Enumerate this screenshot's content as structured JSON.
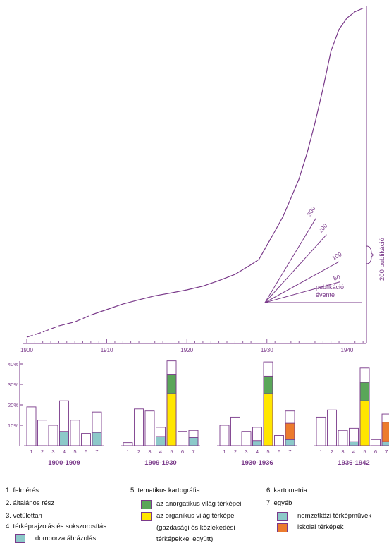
{
  "colors": {
    "purple": "#7a3a8a",
    "panel_title": "#7a3a8a",
    "inorganic_green": "#5aa659",
    "organic_yellow": "#ffe600",
    "international_teal": "#8cc9c9",
    "school_orange": "#ec7b2d",
    "relief_teal": "#8cc9c9",
    "bar_outline": "#7a3a8a"
  },
  "chart_data": [
    {
      "type": "line",
      "title": "",
      "x_axis": {
        "ticks": [
          "1900",
          "1910",
          "1920",
          "1930",
          "1940"
        ],
        "range": [
          1900,
          1943
        ]
      },
      "y_axis": {
        "label": "200 publikáció",
        "scale_bracket_value": 200
      },
      "series": [
        {
          "name": "",
          "x": [
            1900,
            1902,
            1904,
            1906,
            1908,
            1910,
            1912,
            1914,
            1916,
            1918,
            1920,
            1922,
            1924,
            1926,
            1928,
            1929,
            1930,
            1931,
            1932,
            1933,
            1934,
            1935,
            1936,
            1937,
            1938,
            1939,
            1940,
            1941,
            1942
          ],
          "y": [
            0,
            115,
            255,
            345,
            500,
            625,
            750,
            845,
            935,
            1000,
            1070,
            1155,
            1280,
            1420,
            1640,
            1760,
            2080,
            2400,
            2730,
            3150,
            3580,
            4160,
            4850,
            5630,
            6480,
            6970,
            7230,
            7370,
            7450
          ]
        }
      ],
      "fan_scale": {
        "caption": "publikáció évente",
        "labels": [
          "300",
          "200",
          "100",
          "50"
        ],
        "values": [
          300,
          200,
          100,
          50
        ]
      }
    },
    {
      "type": "bar",
      "stacked": true,
      "y_axis": {
        "ticks": [
          "10%",
          "20%",
          "30%",
          "40%"
        ],
        "range": [
          0,
          40
        ]
      },
      "categories": [
        "1",
        "2",
        "3",
        "4",
        "5",
        "6",
        "7"
      ],
      "panels": [
        {
          "title": "1900-1909",
          "totals": [
            19,
            12.5,
            10,
            22,
            12.5,
            6,
            16.5
          ],
          "segments": {
            "relief": [
              0,
              0,
              0,
              7,
              0,
              0,
              0
            ],
            "inorganic": [
              0,
              0,
              0,
              0,
              0,
              0,
              0
            ],
            "organic": [
              0,
              0,
              0,
              0,
              0,
              0,
              0
            ],
            "international": [
              0,
              0,
              0,
              0,
              0,
              0,
              6.5
            ],
            "school": [
              0,
              0,
              0,
              0,
              0,
              0,
              0
            ]
          }
        },
        {
          "title": "1909-1930",
          "totals": [
            1.5,
            18,
            17,
            9,
            41.5,
            7,
            7.5
          ],
          "segments": {
            "relief": [
              0,
              0,
              0,
              4.5,
              0,
              0,
              0
            ],
            "inorganic": [
              0,
              0,
              0,
              0,
              9.5,
              0,
              0
            ],
            "organic": [
              0,
              0,
              0,
              0,
              25.5,
              0,
              0
            ],
            "international": [
              0,
              0,
              0,
              0,
              0,
              0,
              4
            ],
            "school": [
              0,
              0,
              0,
              0,
              0,
              0,
              0
            ]
          }
        },
        {
          "title": "1930-1936",
          "totals": [
            10,
            14,
            7,
            9,
            41,
            5,
            17
          ],
          "segments": {
            "relief": [
              0,
              0,
              0,
              2.5,
              0,
              0,
              0
            ],
            "inorganic": [
              0,
              0,
              0,
              0,
              8.5,
              0,
              0
            ],
            "organic": [
              0,
              0,
              0,
              0,
              25.5,
              0,
              0
            ],
            "international": [
              0,
              0,
              0,
              0,
              0,
              0,
              3
            ],
            "school": [
              0,
              0,
              0,
              0,
              0,
              0,
              8
            ]
          }
        },
        {
          "title": "1936-1942",
          "totals": [
            14,
            17.5,
            7.5,
            8.5,
            38,
            3,
            15.5
          ],
          "segments": {
            "relief": [
              0,
              0,
              0,
              2,
              0,
              0,
              0
            ],
            "inorganic": [
              0,
              0,
              0,
              0,
              9,
              0,
              0
            ],
            "organic": [
              0,
              0,
              0,
              0,
              22,
              0,
              0
            ],
            "international": [
              0,
              0,
              0,
              0,
              0,
              0,
              2
            ],
            "school": [
              0,
              0,
              0,
              0,
              0,
              0,
              9.5
            ]
          }
        }
      ]
    }
  ],
  "legend": {
    "col1": [
      "1. felmérés",
      "2. általános rész",
      "3. vetülettan",
      "4. térképrajzolás és sokszorosítás"
    ],
    "relief_label": "domborzatábrázolás",
    "col2_title": "5. tematikus kartográfia",
    "inorganic_label": "az anorgatikus világ térképei",
    "organic_label": "az organikus világ térképei",
    "organic_label_2": "(gazdasági és közlekedési",
    "organic_label_3": "térképekkel együtt)",
    "col3_items": [
      "6. kartometria",
      "7. egyéb"
    ],
    "international_label": "nemzetközi térképművek",
    "school_label": "iskolai térképek"
  }
}
